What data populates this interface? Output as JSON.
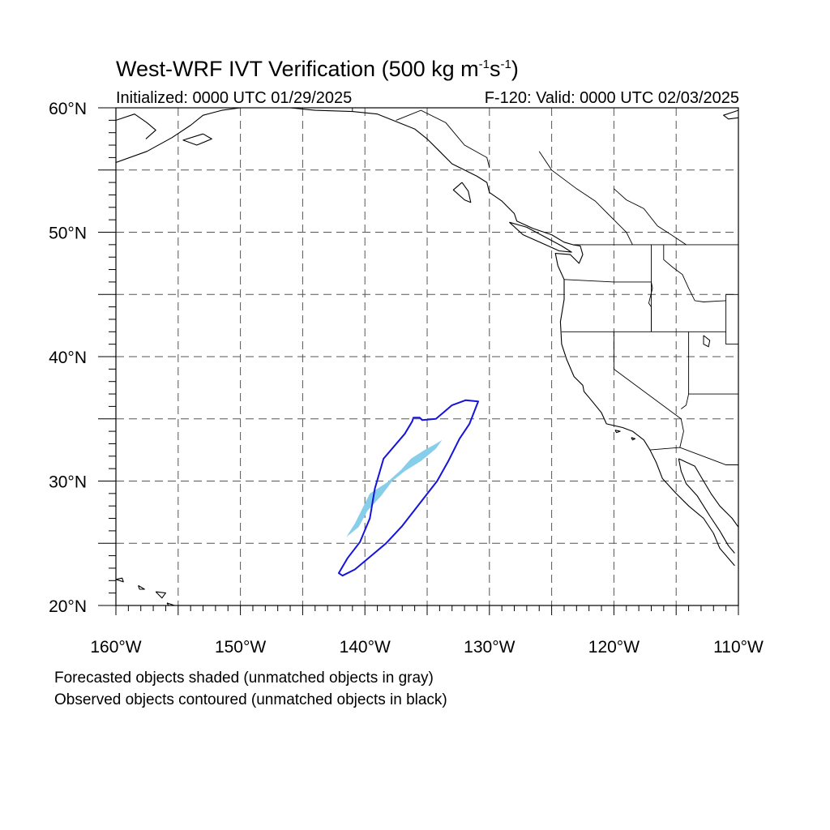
{
  "title": {
    "prefix": "West-WRF IVT Verification (500 kg m",
    "exp1": "-1",
    "mid": "s",
    "exp2": "-1",
    "suffix": ")"
  },
  "subtitle_left": "Initialized: 0000 UTC 01/29/2025",
  "subtitle_right": "F-120: Valid: 0000 UTC 02/03/2025",
  "legend_notes": [
    "Forecasted objects shaded (unmatched objects in gray)",
    "Observed objects contoured (unmatched objects in black)"
  ],
  "map": {
    "lon_range": [
      -160,
      -110
    ],
    "lat_range": [
      20,
      60
    ],
    "grid_lines": "dashed",
    "lon_ticks": [
      {
        "value": -160,
        "label": "160°W"
      },
      {
        "value": -150,
        "label": "150°W"
      },
      {
        "value": -140,
        "label": "140°W"
      },
      {
        "value": -130,
        "label": "130°W"
      },
      {
        "value": -120,
        "label": "120°W"
      },
      {
        "value": -110,
        "label": "110°W"
      }
    ],
    "lat_ticks": [
      {
        "value": 20,
        "label": "20°N"
      },
      {
        "value": 30,
        "label": "30°N"
      },
      {
        "value": 40,
        "label": "40°N"
      },
      {
        "value": 50,
        "label": "50°N"
      },
      {
        "value": 60,
        "label": "60°N"
      }
    ],
    "colors": {
      "forecast_fill": "#87ceeb",
      "observed_contour": "#1414dc",
      "coastline": "#000000",
      "grid": "#555555"
    },
    "forecast_object": [
      [
        -141.5,
        25.5
      ],
      [
        -140.5,
        26.3
      ],
      [
        -139.8,
        27.6
      ],
      [
        -138.7,
        28.8
      ],
      [
        -137.8,
        30.0
      ],
      [
        -136.8,
        30.8
      ],
      [
        -135.5,
        31.6
      ],
      [
        -134.3,
        32.6
      ],
      [
        -133.8,
        33.3
      ],
      [
        -134.3,
        33.0
      ],
      [
        -135.2,
        32.5
      ],
      [
        -136.3,
        31.8
      ],
      [
        -137.1,
        30.9
      ],
      [
        -138.2,
        29.9
      ],
      [
        -139.6,
        29.0
      ],
      [
        -140.2,
        27.8
      ],
      [
        -140.8,
        26.6
      ],
      [
        -141.5,
        25.5
      ]
    ],
    "observed_object": [
      [
        -142.1,
        22.6
      ],
      [
        -141.8,
        22.4
      ],
      [
        -140.8,
        22.9
      ],
      [
        -139.6,
        23.9
      ],
      [
        -138.3,
        25.0
      ],
      [
        -137.0,
        26.4
      ],
      [
        -135.6,
        28.2
      ],
      [
        -134.2,
        30.0
      ],
      [
        -133.3,
        31.6
      ],
      [
        -132.4,
        33.4
      ],
      [
        -131.6,
        34.6
      ],
      [
        -130.9,
        36.4
      ],
      [
        -131.9,
        36.5
      ],
      [
        -133.0,
        36.1
      ],
      [
        -134.3,
        35.0
      ],
      [
        -135.4,
        34.9
      ],
      [
        -135.6,
        35.1
      ],
      [
        -136.1,
        35.1
      ],
      [
        -136.2,
        34.8
      ],
      [
        -136.8,
        33.8
      ],
      [
        -138.5,
        31.8
      ],
      [
        -139.2,
        29.4
      ],
      [
        -139.6,
        27.0
      ],
      [
        -140.4,
        25.1
      ],
      [
        -141.4,
        23.8
      ],
      [
        -142.1,
        22.6
      ]
    ],
    "coastlines": [
      [
        [
          -160,
          55.6
        ],
        [
          -157.5,
          56.5
        ],
        [
          -155.5,
          57.6
        ],
        [
          -154,
          58.6
        ],
        [
          -153,
          59.4
        ],
        [
          -151.5,
          59.8
        ],
        [
          -150,
          60
        ]
      ],
      [
        [
          -153,
          57.9
        ],
        [
          -152.3,
          57.5
        ],
        [
          -153.5,
          57.0
        ],
        [
          -154.6,
          57.4
        ],
        [
          -153,
          57.9
        ]
      ],
      [
        [
          -146,
          60
        ],
        [
          -144,
          59.8
        ],
        [
          -141,
          59.7
        ],
        [
          -139,
          59.5
        ],
        [
          -137,
          58.7
        ],
        [
          -136,
          58.3
        ],
        [
          -135,
          57.5
        ],
        [
          -134,
          56.5
        ],
        [
          -133,
          55.5
        ],
        [
          -132,
          55
        ],
        [
          -131,
          54.5
        ],
        [
          -130.2,
          54
        ],
        [
          -130,
          53.2
        ],
        [
          -129,
          52.5
        ],
        [
          -128,
          51.5
        ],
        [
          -127.8,
          50.9
        ],
        [
          -126.5,
          50.3
        ],
        [
          -125,
          49.8
        ],
        [
          -124,
          49.2
        ],
        [
          -123.3,
          49.0
        ],
        [
          -122.7,
          48.9
        ],
        [
          -122.5,
          48.2
        ],
        [
          -122.8,
          47.5
        ],
        [
          -123.5,
          48.2
        ],
        [
          -124.7,
          48.3
        ],
        [
          -124.5,
          47.3
        ],
        [
          -124.0,
          46.2
        ],
        [
          -124.0,
          44.6
        ],
        [
          -124.3,
          42.8
        ],
        [
          -124.2,
          41.0
        ],
        [
          -123.8,
          39.8
        ],
        [
          -123.2,
          38.4
        ],
        [
          -122.5,
          37.7
        ],
        [
          -122.4,
          37.2
        ],
        [
          -121.9,
          36.6
        ],
        [
          -121.0,
          35.5
        ],
        [
          -120.6,
          34.6
        ],
        [
          -119.3,
          34.3
        ],
        [
          -118.5,
          34.0
        ],
        [
          -117.6,
          33.3
        ],
        [
          -117.1,
          32.5
        ],
        [
          -116.6,
          31.5
        ],
        [
          -116.1,
          30.2
        ],
        [
          -115.0,
          29.0
        ],
        [
          -114.0,
          28.0
        ],
        [
          -112.8,
          27.0
        ],
        [
          -112.0,
          25.8
        ],
        [
          -111.5,
          24.6
        ],
        [
          -110.3,
          23.2
        ]
      ],
      [
        [
          -114.8,
          31.8
        ],
        [
          -113.5,
          31.2
        ],
        [
          -112.8,
          30.0
        ],
        [
          -112.2,
          29.0
        ],
        [
          -111.5,
          28.0
        ],
        [
          -110.5,
          27.0
        ],
        [
          -110,
          26.3
        ]
      ],
      [
        [
          -114.8,
          31.8
        ],
        [
          -114.6,
          30.8
        ],
        [
          -114.2,
          29.8
        ],
        [
          -113.3,
          28.8
        ],
        [
          -112.8,
          28.0
        ],
        [
          -112.3,
          27.2
        ],
        [
          -111.5,
          26.0
        ],
        [
          -110.8,
          24.8
        ],
        [
          -110.3,
          24.2
        ]
      ],
      [
        [
          -128.4,
          50.8
        ],
        [
          -127,
          50.4
        ],
        [
          -125.5,
          49.6
        ],
        [
          -124.2,
          48.9
        ],
        [
          -123.4,
          48.4
        ],
        [
          -124.4,
          48.5
        ],
        [
          -125.5,
          49.0
        ],
        [
          -127.3,
          49.8
        ],
        [
          -128.4,
          50.8
        ]
      ],
      [
        [
          -132.2,
          54.0
        ],
        [
          -131.7,
          53.3
        ],
        [
          -131.5,
          52.4
        ],
        [
          -132.0,
          52.6
        ],
        [
          -132.9,
          53.4
        ],
        [
          -132.2,
          54.0
        ]
      ],
      [
        [
          -160,
          22.1
        ],
        [
          -159.5,
          22.2
        ],
        [
          -159.4,
          21.9
        ],
        [
          -160,
          22.1
        ]
      ],
      [
        [
          -158.2,
          21.6
        ],
        [
          -157.7,
          21.3
        ],
        [
          -158.1,
          21.3
        ],
        [
          -158.2,
          21.6
        ]
      ],
      [
        [
          -156.8,
          21.1
        ],
        [
          -156.0,
          21.0
        ],
        [
          -156.3,
          20.6
        ],
        [
          -156.8,
          21.1
        ]
      ],
      [
        [
          -155.9,
          20.2
        ],
        [
          -155.0,
          19.9
        ],
        [
          -155.5,
          19.6
        ],
        [
          -155.9,
          20.2
        ]
      ],
      [
        [
          -119.9,
          34.1
        ],
        [
          -119.5,
          34.0
        ],
        [
          -119.8,
          33.9
        ],
        [
          -119.9,
          34.1
        ]
      ],
      [
        [
          -118.6,
          33.5
        ],
        [
          -118.3,
          33.4
        ],
        [
          -118.5,
          33.3
        ],
        [
          -118.6,
          33.5
        ]
      ],
      [
        [
          -160,
          59.0
        ],
        [
          -158.5,
          59.5
        ],
        [
          -157.5,
          58.8
        ],
        [
          -156.8,
          58.2
        ],
        [
          -157.6,
          57.5
        ]
      ],
      [
        [
          -110,
          59.8
        ],
        [
          -111.2,
          59.4
        ],
        [
          -110.8,
          59.1
        ],
        [
          -110,
          59.2
        ]
      ]
    ],
    "borders": [
      [
        [
          -141,
          60
        ],
        [
          -141,
          59.7
        ]
      ],
      [
        [
          -137.5,
          59.0
        ],
        [
          -135.5,
          59.8
        ],
        [
          -133.5,
          58.8
        ],
        [
          -132,
          57
        ],
        [
          -130.2,
          56
        ],
        [
          -130,
          55.2
        ]
      ],
      [
        [
          -123.3,
          49.0
        ],
        [
          -110,
          49.0
        ]
      ],
      [
        [
          -124.0,
          46.2
        ],
        [
          -120,
          46.0
        ],
        [
          -117.0,
          46.0
        ],
        [
          -116.9,
          45.5
        ],
        [
          -117.2,
          44.3
        ],
        [
          -117.0,
          44.0
        ],
        [
          -117.0,
          42.0
        ]
      ],
      [
        [
          -124.2,
          42.0
        ],
        [
          -111.0,
          42.0
        ]
      ],
      [
        [
          -117.0,
          49.0
        ],
        [
          -117.0,
          42.0
        ]
      ],
      [
        [
          -116.0,
          49.0
        ],
        [
          -116.0,
          47.8
        ],
        [
          -115.3,
          47.2
        ],
        [
          -114.5,
          46.6
        ],
        [
          -114,
          45.5
        ],
        [
          -113.5,
          44.5
        ],
        [
          -112.8,
          44.4
        ],
        [
          -111.0,
          44.5
        ]
      ],
      [
        [
          -120.0,
          42.0
        ],
        [
          -120.0,
          39.0
        ],
        [
          -114.6,
          35.0
        ],
        [
          -114.4,
          34.0
        ],
        [
          -114.7,
          32.7
        ]
      ],
      [
        [
          -114.0,
          42.0
        ],
        [
          -114.0,
          37.0
        ],
        [
          -114.2,
          36.1
        ],
        [
          -114.6,
          35.8
        ]
      ],
      [
        [
          -111.0,
          45.0
        ],
        [
          -110,
          45.0
        ]
      ],
      [
        [
          -110,
          41.0
        ],
        [
          -111.0,
          41.0
        ],
        [
          -111.0,
          45.0
        ]
      ],
      [
        [
          -114.0,
          37.0
        ],
        [
          -110,
          37.0
        ]
      ],
      [
        [
          -117.1,
          32.5
        ],
        [
          -114.7,
          32.7
        ],
        [
          -111.0,
          31.3
        ],
        [
          -110,
          31.3
        ]
      ],
      [
        [
          -118.5,
          49.0
        ],
        [
          -119,
          50
        ],
        [
          -120.5,
          51.5
        ],
        [
          -121.5,
          52.5
        ],
        [
          -123,
          53.5
        ],
        [
          -125,
          55
        ],
        [
          -126,
          56.5
        ]
      ],
      [
        [
          -120,
          53.5
        ],
        [
          -119,
          52.6
        ],
        [
          -117.6,
          51.9
        ],
        [
          -116.5,
          50.5
        ],
        [
          -115.4,
          49.8
        ],
        [
          -114.2,
          49.0
        ]
      ]
    ],
    "lakes": [
      [
        [
          -112.8,
          41.7
        ],
        [
          -112.3,
          41.3
        ],
        [
          -112.4,
          40.8
        ],
        [
          -112.8,
          41.0
        ],
        [
          -112.8,
          41.7
        ]
      ]
    ]
  }
}
